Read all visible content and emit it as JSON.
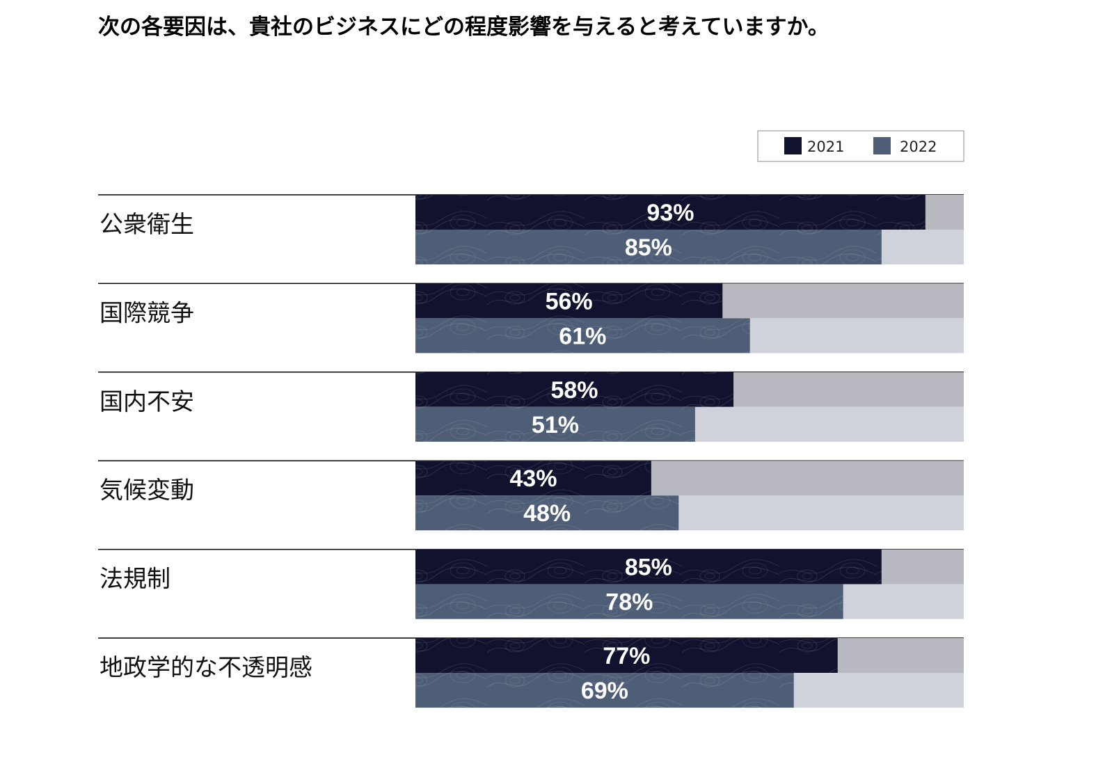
{
  "chart_data": {
    "type": "bar",
    "orientation": "horizontal",
    "title": "次の各要因は、貴社のビジネスにどの程度影響を与えると考えていますか。",
    "categories": [
      "公衆衛生",
      "国際競争",
      "国内不安",
      "気候変動",
      "法規制",
      "地政学的な不透明感"
    ],
    "series": [
      {
        "name": "2021",
        "values": [
          93,
          56,
          58,
          43,
          85,
          77
        ]
      },
      {
        "name": "2022",
        "values": [
          85,
          61,
          51,
          48,
          78,
          69
        ]
      }
    ],
    "value_suffix": "%",
    "xlim": [
      0,
      100
    ],
    "legend": {
      "position": "top-right",
      "entries": [
        "2021",
        "2022"
      ]
    },
    "grid": false
  },
  "colors": {
    "series_2021": "#11132e",
    "series_2022": "#4e5e76",
    "track_2021": "#b9bac1",
    "track_2022": "#cfd2da",
    "label_text": "#ffffff",
    "divider": "#000000"
  }
}
